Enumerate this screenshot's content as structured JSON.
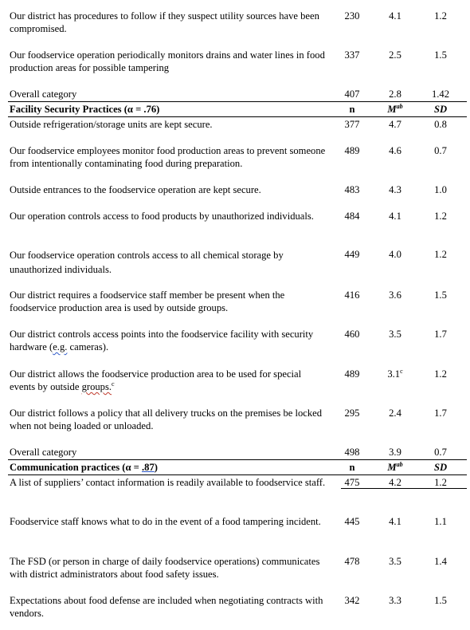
{
  "rows_a": [
    {
      "statement": "Our district has procedures to follow if they suspect utility sources have been compromised.",
      "n": "230",
      "m": "4.1",
      "sd": "1.2"
    },
    {
      "statement": "Our foodservice operation periodically monitors drains and water lines in food production areas for possible tampering",
      "n": "337",
      "m": "2.5",
      "sd": "1.5"
    }
  ],
  "overall_a": {
    "label": "Overall category",
    "n": "407",
    "m": "2.8",
    "sd": "1.42"
  },
  "section_facility": {
    "title_pre": "Facility Security Practices (α = .76)",
    "col_n": "n",
    "col_m": "M",
    "col_m_sup": "ab",
    "col_sd": "SD"
  },
  "rows_b": [
    {
      "statement": "Outside refrigeration/storage units are kept secure.",
      "n": "377",
      "m": "4.7",
      "sd": "0.8"
    },
    {
      "statement": "Our foodservice employees monitor food production areas to prevent someone from intentionally contaminating food during preparation.",
      "n": "489",
      "m": "4.6",
      "sd": "0.7"
    },
    {
      "statement": "Outside entrances to the foodservice operation are kept secure.",
      "n": "483",
      "m": "4.3",
      "sd": "1.0"
    },
    {
      "statement": "Our operation controls access to food products by unauthorized individuals.",
      "n": "484",
      "m": "4.1",
      "sd": "1.2"
    },
    {
      "statement": "Our foodservice operation controls access to all chemical storage by unauthorized individuals.",
      "n": "449",
      "m": "4.0",
      "sd": "1.2"
    },
    {
      "statement": "Our district requires a foodservice staff member be present when the foodservice production area is used by outside groups.",
      "n": "416",
      "m": "3.6",
      "sd": "1.5"
    },
    {
      "statement_pre": "Our district controls access points into the foodservice facility with security hardware (",
      "statement_mark": "e.g.",
      "statement_post": " cameras).",
      "n": "460",
      "m": "3.5",
      "sd": "1.7"
    },
    {
      "statement_pre": "Our district allows the foodservice production area to be used for special events by outside ",
      "statement_mark": "groups.",
      "statement_sup": "c",
      "n": "489",
      "m": "3.1",
      "m_sup": "c",
      "sd": "1.2"
    },
    {
      "statement": "Our district follows a policy that all delivery trucks on the premises be locked when not being loaded or unloaded.",
      "n": "295",
      "m": "2.4",
      "sd": "1.7"
    }
  ],
  "overall_b": {
    "label": "Overall category",
    "n": "498",
    "m": "3.9",
    "sd": "0.7"
  },
  "section_comm": {
    "title_pre": "Communication practices (α = ",
    "title_mark": ".87",
    "title_post": ")",
    "col_n": "n",
    "col_m": "M",
    "col_m_sup": "ab",
    "col_sd": "SD"
  },
  "rows_c": [
    {
      "statement": "A list of suppliers’ contact information is readily available to foodservice staff.",
      "n": "475",
      "m": "4.2",
      "sd": "1.2"
    },
    {
      "statement": "Foodservice staff knows what to do in the event of a food tampering incident.",
      "n": "445",
      "m": "4.1",
      "sd": "1.1"
    },
    {
      "statement": "The FSD (or person in charge of daily foodservice operations) communicates with district administrators about food safety issues.",
      "n": "478",
      "m": "3.5",
      "sd": "1.4"
    },
    {
      "statement": "Expectations about food defense are included when negotiating contracts with vendors.",
      "n": "342",
      "m": "3.3",
      "sd": "1.5"
    }
  ]
}
